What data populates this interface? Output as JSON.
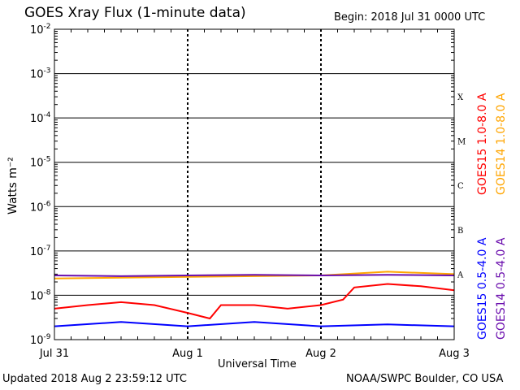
{
  "header": {
    "title": "GOES Xray Flux (1-minute data)",
    "begin": "Begin:  2018 Jul 31 0000 UTC"
  },
  "footer": {
    "updated": "Updated 2018 Aug  2 23:59:12 UTC",
    "credit": "NOAA/SWPC Boulder, CO USA"
  },
  "chart_data": {
    "type": "line",
    "title": "GOES Xray Flux (1-minute data)",
    "xlabel": "Universal Time",
    "ylabel": "Watts m⁻²",
    "yscale": "log",
    "ylim": [
      1e-09,
      0.01
    ],
    "xlim": [
      "2018-07-31 00:00",
      "2018-08-03 00:00"
    ],
    "x_ticks": [
      "Jul 31",
      "Aug 1",
      "Aug 2",
      "Aug 3"
    ],
    "y_ticks": [
      {
        "base": "10",
        "exp": "-9",
        "value": 1e-09
      },
      {
        "base": "10",
        "exp": "-8",
        "value": 1e-08
      },
      {
        "base": "10",
        "exp": "-7",
        "value": 1e-07
      },
      {
        "base": "10",
        "exp": "-6",
        "value": 1e-06
      },
      {
        "base": "10",
        "exp": "-5",
        "value": 1e-05
      },
      {
        "base": "10",
        "exp": "-4",
        "value": 0.0001
      },
      {
        "base": "10",
        "exp": "-3",
        "value": 0.001
      },
      {
        "base": "10",
        "exp": "-2",
        "value": 0.01
      }
    ],
    "flare_classes": [
      {
        "label": "A",
        "value": 3e-08
      },
      {
        "label": "B",
        "value": 3e-07
      },
      {
        "label": "C",
        "value": 3e-06
      },
      {
        "label": "M",
        "value": 3e-05
      },
      {
        "label": "X",
        "value": 0.0003
      }
    ],
    "grid": true,
    "series": [
      {
        "name": "GOES15 1.0-8.0 A",
        "color": "#ff0000",
        "x": [
          "2018-07-31 00:00",
          "2018-07-31 06:00",
          "2018-07-31 12:00",
          "2018-07-31 18:00",
          "2018-08-01 00:00",
          "2018-08-01 04:00",
          "2018-08-01 06:00",
          "2018-08-01 12:00",
          "2018-08-01 18:00",
          "2018-08-02 00:00",
          "2018-08-02 04:00",
          "2018-08-02 06:00",
          "2018-08-02 12:00",
          "2018-08-02 18:00",
          "2018-08-03 00:00"
        ],
        "values": [
          5e-09,
          6e-09,
          7e-09,
          6e-09,
          4e-09,
          3e-09,
          6e-09,
          6e-09,
          5e-09,
          6e-09,
          8e-09,
          1.5e-08,
          1.8e-08,
          1.6e-08,
          1.3e-08
        ]
      },
      {
        "name": "GOES14 1.0-8.0 A",
        "color": "#ffa500",
        "x": [
          "2018-07-31 00:00",
          "2018-07-31 12:00",
          "2018-08-01 00:00",
          "2018-08-01 12:00",
          "2018-08-02 00:00",
          "2018-08-02 12:00",
          "2018-08-03 00:00"
        ],
        "values": [
          2.4e-08,
          2.5e-08,
          2.6e-08,
          2.7e-08,
          2.8e-08,
          3.4e-08,
          3e-08
        ]
      },
      {
        "name": "GOES15 0.5-4.0 A",
        "color": "#0000ff",
        "x": [
          "2018-07-31 00:00",
          "2018-07-31 12:00",
          "2018-08-01 00:00",
          "2018-08-01 12:00",
          "2018-08-02 00:00",
          "2018-08-02 12:00",
          "2018-08-03 00:00"
        ],
        "values": [
          2e-09,
          2.5e-09,
          2e-09,
          2.5e-09,
          2e-09,
          2.2e-09,
          2e-09
        ]
      },
      {
        "name": "GOES14 0.5-4.0 A",
        "color": "#6a0dad",
        "x": [
          "2018-07-31 00:00",
          "2018-07-31 12:00",
          "2018-08-01 00:00",
          "2018-08-01 12:00",
          "2018-08-02 00:00",
          "2018-08-02 12:00",
          "2018-08-03 00:00"
        ],
        "values": [
          2.8e-08,
          2.7e-08,
          2.8e-08,
          2.9e-08,
          2.8e-08,
          2.9e-08,
          2.8e-08
        ]
      }
    ]
  }
}
